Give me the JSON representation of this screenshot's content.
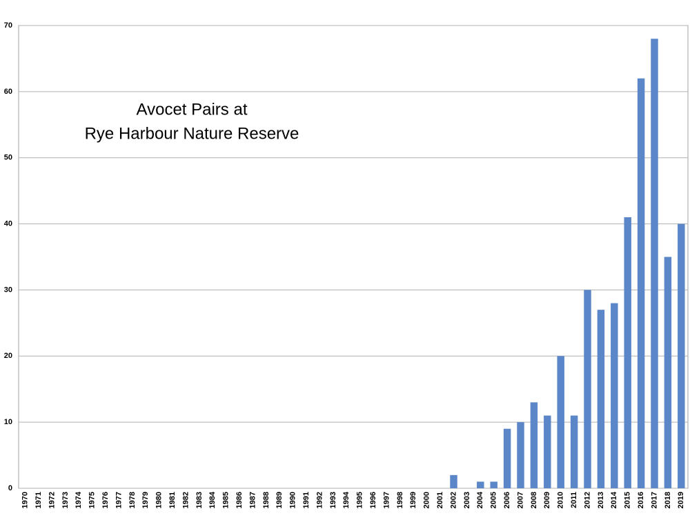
{
  "chart_data": {
    "type": "bar",
    "title": [
      "Avocet Pairs at",
      "Rye Harbour Nature Reserve"
    ],
    "categories": [
      "1970",
      "1971",
      "1972",
      "1973",
      "1974",
      "1975",
      "1976",
      "1977",
      "1978",
      "1979",
      "1980",
      "1981",
      "1982",
      "1983",
      "1984",
      "1985",
      "1986",
      "1987",
      "1988",
      "1989",
      "1990",
      "1991",
      "1992",
      "1993",
      "1994",
      "1995",
      "1996",
      "1997",
      "1998",
      "1999",
      "2000",
      "2001",
      "2002",
      "2003",
      "2004",
      "2005",
      "2006",
      "2007",
      "2008",
      "2009",
      "2010",
      "2011",
      "2012",
      "2013",
      "2014",
      "2015",
      "2016",
      "2017",
      "2018",
      "2019"
    ],
    "values": [
      0,
      0,
      0,
      0,
      0,
      0,
      0,
      0,
      0,
      0,
      0,
      0,
      0,
      0,
      0,
      0,
      0,
      0,
      0,
      0,
      0,
      0,
      0,
      0,
      0,
      0,
      0,
      0,
      0,
      0,
      0,
      0,
      2,
      0,
      1,
      1,
      9,
      10,
      13,
      11,
      20,
      11,
      30,
      27,
      28,
      41,
      62,
      68,
      35,
      40
    ],
    "color": "#5b87c8",
    "ylim": [
      0,
      70
    ],
    "yticks": [
      0,
      10,
      20,
      30,
      40,
      50,
      60,
      70
    ],
    "grid": true
  }
}
